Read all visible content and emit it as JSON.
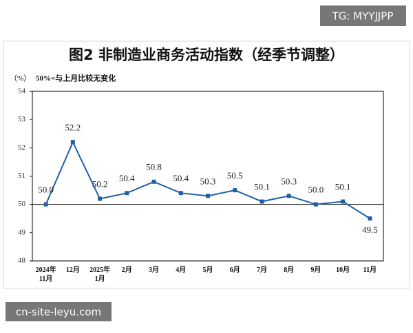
{
  "chart_data": {
    "type": "line",
    "title": "图2  非制造业商务活动指数（经季节调整）",
    "y_label": "（%）",
    "note": "50%=与上月比较无变化",
    "categories": [
      "2024年\n11月",
      "12月",
      "2025年\n1月",
      "2月",
      "3月",
      "4月",
      "5月",
      "6月",
      "7月",
      "8月",
      "9月",
      "10月",
      "11月"
    ],
    "values": [
      50.0,
      52.2,
      50.2,
      50.4,
      50.8,
      50.4,
      50.3,
      50.5,
      50.1,
      50.3,
      50.0,
      50.1,
      49.5
    ],
    "value_labels": [
      "50.0",
      "52.2",
      "50.2",
      "50.4",
      "50.8",
      "50.4",
      "50.3",
      "50.5",
      "50.1",
      "50.3",
      "50.0",
      "50.1",
      "49.5"
    ],
    "color": "#1f5fa8",
    "ylim": [
      48,
      54
    ],
    "yticks": [
      48,
      49,
      50,
      51,
      52,
      53,
      54
    ],
    "reference_line": 50
  },
  "watermarks": [
    "TG: MYYJJPP",
    "cn-site-leyu.com"
  ]
}
